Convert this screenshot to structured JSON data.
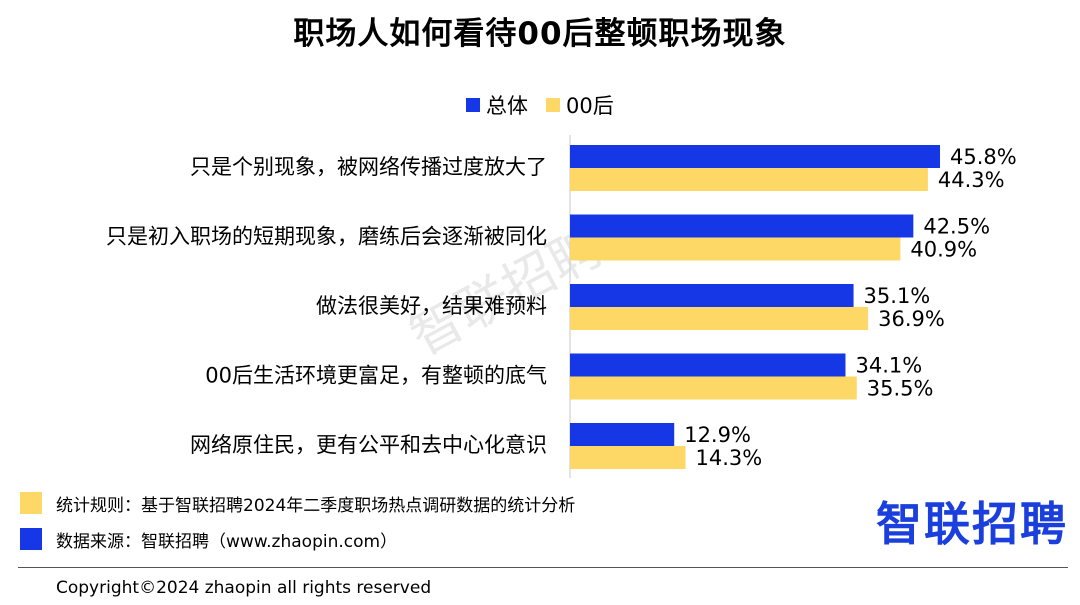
{
  "title": "职场人如何看待00后整顿职场现象",
  "colors": {
    "overall": "#1637e6",
    "gen00": "#fdd867"
  },
  "chart_data": {
    "type": "bar",
    "orientation": "horizontal",
    "title": "职场人如何看待00后整顿职场现象",
    "legend_position": "top-center",
    "categories": [
      "只是个别现象，被网络传播过度放大了",
      "只是初入职场的短期现象，磨练后会逐渐被同化",
      "做法很美好，结果难预料",
      "00后生活环境更富足，有整顿的底气",
      "网络原住民，更有公平和去中心化意识"
    ],
    "series": [
      {
        "name": "总体",
        "color": "#1637e6",
        "values": [
          45.8,
          42.5,
          35.1,
          34.1,
          12.9
        ],
        "labels": [
          "45.8%",
          "42.5%",
          "35.1%",
          "34.1%",
          "12.9%"
        ]
      },
      {
        "name": "00后",
        "color": "#fdd867",
        "values": [
          44.3,
          40.9,
          36.9,
          35.5,
          14.3
        ],
        "labels": [
          "44.3%",
          "40.9%",
          "36.9%",
          "35.5%",
          "14.3%"
        ]
      }
    ],
    "xlim": [
      0,
      50
    ],
    "grid": false
  },
  "footnotes": {
    "rule": "统计规则：基于智联招聘2024年二季度职场热点调研数据的统计分析",
    "source": "数据来源：智联招聘（www.zhaopin.com）"
  },
  "logo": "智联招聘",
  "watermark": "智联招聘",
  "copyright": "Copyright©2024 zhaopin all rights reserved"
}
